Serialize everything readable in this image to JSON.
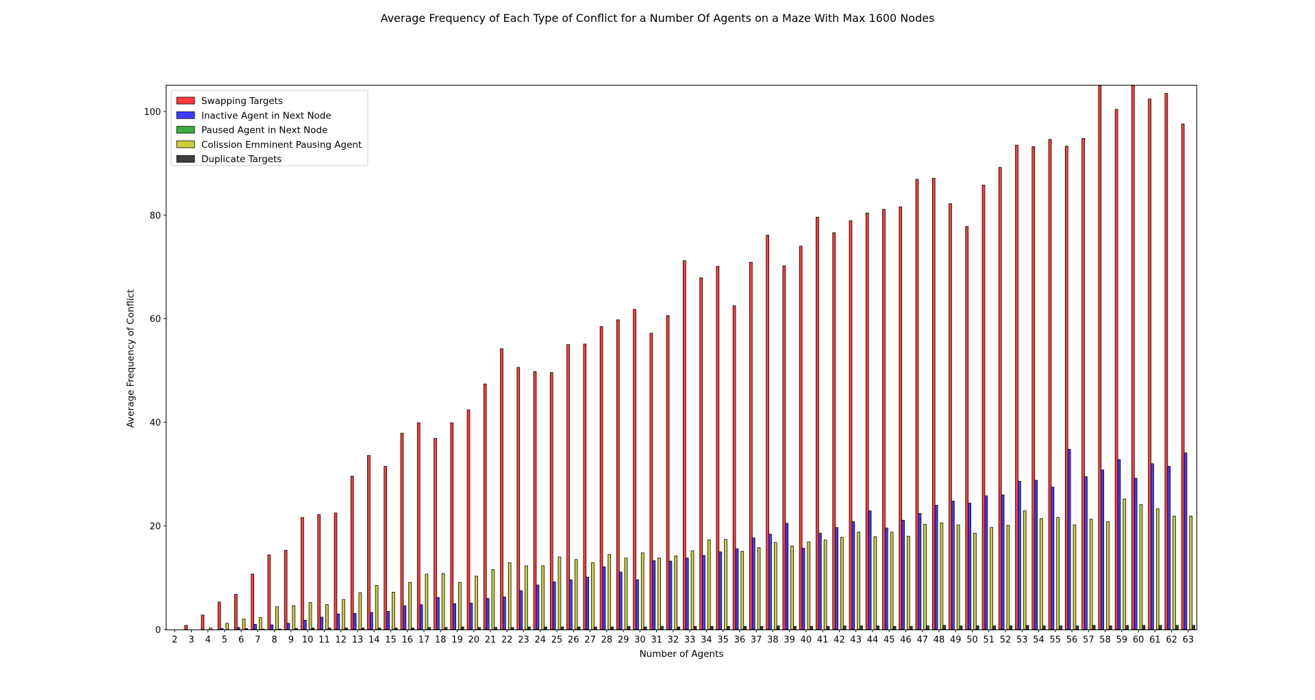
{
  "chart_data": {
    "type": "bar",
    "title": "Average Frequency of Each Type of Conflict for a Number Of Agents on a Maze With Max 1600 Nodes",
    "xlabel": "Number of Agents",
    "ylabel": "Average Frequency of Conflict",
    "ylim": [
      0,
      105
    ],
    "yticks": [
      0,
      20,
      40,
      60,
      80,
      100
    ],
    "grid": false,
    "legend_position": "top-left",
    "categories": [
      "2",
      "3",
      "4",
      "5",
      "6",
      "7",
      "8",
      "9",
      "10",
      "11",
      "12",
      "13",
      "14",
      "15",
      "16",
      "17",
      "18",
      "19",
      "20",
      "21",
      "22",
      "23",
      "24",
      "25",
      "26",
      "27",
      "28",
      "29",
      "30",
      "31",
      "32",
      "33",
      "34",
      "35",
      "36",
      "37",
      "38",
      "39",
      "40",
      "41",
      "42",
      "43",
      "44",
      "45",
      "46",
      "47",
      "48",
      "49",
      "50",
      "51",
      "52",
      "53",
      "54",
      "55",
      "56",
      "57",
      "58",
      "59",
      "60",
      "61",
      "62",
      "63"
    ],
    "series": [
      {
        "name": "Swapping Targets",
        "color": "#ff3333",
        "values": [
          0,
          0.8,
          2.8,
          5.3,
          6.8,
          10.7,
          14.4,
          15.3,
          21.6,
          22.2,
          22.5,
          29.6,
          33.6,
          31.5,
          37.9,
          39.9,
          36.9,
          39.9,
          42.4,
          47.4,
          54.2,
          50.6,
          49.8,
          49.6,
          55.0,
          55.1,
          58.5,
          59.8,
          61.8,
          57.2,
          60.6,
          71.2,
          67.9,
          70.1,
          62.5,
          70.9,
          76.1,
          70.2,
          74.0,
          79.6,
          76.6,
          78.9,
          80.4,
          81.1,
          81.6,
          86.9,
          87.1,
          82.2,
          77.8,
          85.8,
          89.2,
          93.5,
          93.2,
          94.6,
          93.3,
          94.8,
          105,
          100.4,
          105,
          102.4,
          103.5,
          97.6
        ]
      },
      {
        "name": "Inactive Agent in Next Node",
        "color": "#3333ff",
        "values": [
          0,
          0,
          0,
          0.2,
          0.4,
          1.0,
          0.9,
          1.2,
          1.8,
          2.4,
          3.0,
          3.1,
          3.3,
          3.5,
          4.6,
          4.8,
          6.2,
          5.0,
          5.1,
          6.0,
          6.3,
          7.5,
          8.6,
          9.2,
          9.6,
          10.1,
          12.1,
          11.1,
          9.6,
          13.3,
          13.2,
          13.8,
          14.3,
          15.0,
          15.6,
          17.7,
          18.4,
          20.5,
          15.7,
          18.6,
          19.7,
          20.8,
          22.9,
          19.6,
          21.1,
          22.4,
          24.0,
          24.8,
          24.4,
          25.8,
          26.0,
          28.6,
          28.8,
          27.5,
          34.8,
          29.5,
          30.8,
          32.8,
          29.2,
          32.0,
          31.5,
          34.1
        ]
      },
      {
        "name": "Paused Agent in Next Node",
        "color": "#33aa33",
        "values": [
          0,
          0,
          0,
          0,
          0,
          0,
          0,
          0,
          0,
          0,
          0,
          0,
          0,
          0,
          0,
          0,
          0,
          0,
          0,
          0,
          0,
          0,
          0,
          0,
          0,
          0,
          0,
          0,
          0,
          0,
          0,
          0,
          0,
          0,
          0,
          0,
          0,
          0,
          0,
          0,
          0,
          0,
          0,
          0,
          0,
          0,
          0,
          0,
          0,
          0,
          0,
          0,
          0,
          0,
          0,
          0,
          0,
          0,
          0,
          0,
          0,
          0
        ]
      },
      {
        "name": "Colission Emminent Pausing Agent",
        "color": "#cccc33",
        "values": [
          0,
          0,
          0.3,
          1.2,
          2.0,
          2.3,
          4.4,
          4.6,
          5.2,
          4.8,
          5.8,
          7.1,
          8.5,
          7.2,
          9.1,
          10.7,
          10.8,
          9.1,
          10.3,
          11.6,
          12.9,
          12.3,
          12.3,
          14.0,
          13.5,
          12.9,
          14.5,
          13.8,
          14.8,
          13.8,
          14.2,
          15.2,
          17.3,
          17.4,
          15.1,
          15.8,
          16.8,
          16.1,
          16.9,
          17.3,
          17.8,
          18.8,
          17.9,
          18.8,
          18.0,
          20.3,
          20.6,
          20.2,
          18.6,
          19.7,
          20.1,
          22.9,
          21.4,
          21.6,
          20.2,
          21.3,
          20.8,
          25.2,
          24.1,
          23.3,
          21.9,
          21.9
        ]
      },
      {
        "name": "Duplicate Targets",
        "color": "#333333",
        "values": [
          0,
          0,
          0,
          0,
          0.2,
          0.1,
          0.1,
          0.2,
          0.3,
          0.3,
          0.3,
          0.3,
          0.3,
          0.3,
          0.3,
          0.4,
          0.4,
          0.5,
          0.4,
          0.4,
          0.4,
          0.5,
          0.5,
          0.5,
          0.5,
          0.5,
          0.5,
          0.6,
          0.5,
          0.6,
          0.5,
          0.6,
          0.6,
          0.6,
          0.6,
          0.6,
          0.7,
          0.6,
          0.6,
          0.6,
          0.7,
          0.7,
          0.7,
          0.6,
          0.6,
          0.7,
          0.8,
          0.7,
          0.7,
          0.7,
          0.7,
          0.8,
          0.7,
          0.7,
          0.7,
          0.8,
          0.7,
          0.8,
          0.8,
          0.8,
          0.8,
          0.8
        ]
      }
    ]
  }
}
